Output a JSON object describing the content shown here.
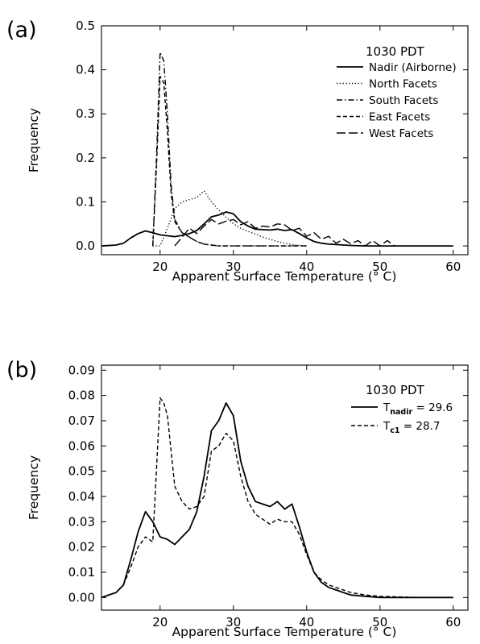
{
  "chart_data": [
    {
      "type": "line",
      "panel_label": "(a)",
      "legend_title": "1030 PDT",
      "xlabel": "Apparent Surface Temperature (° C)",
      "ylabel": "Frequency",
      "xlim": [
        12,
        62
      ],
      "ylim": [
        -0.02,
        0.5
      ],
      "xticks": [
        20,
        30,
        40,
        50,
        60
      ],
      "yticks": [
        0.0,
        0.1,
        0.2,
        0.3,
        0.4,
        0.5
      ],
      "ytick_labels": [
        "0.0",
        "0.1",
        "0.2",
        "0.3",
        "0.4",
        "0.5"
      ],
      "grid": false,
      "legend_position": "top-right",
      "series": [
        {
          "name": "Nadir (Airborne)",
          "style": "solid",
          "x": [
            12,
            14,
            15,
            16,
            17,
            18,
            19,
            20,
            21,
            22,
            23,
            24,
            25,
            26,
            27,
            28,
            29,
            30,
            31,
            32,
            33,
            34,
            35,
            36,
            37,
            38,
            39,
            40,
            41,
            42,
            43,
            44,
            45,
            46,
            48,
            50,
            55,
            60
          ],
          "y": [
            0.0,
            0.002,
            0.006,
            0.018,
            0.028,
            0.034,
            0.03,
            0.025,
            0.023,
            0.021,
            0.024,
            0.028,
            0.035,
            0.05,
            0.066,
            0.07,
            0.077,
            0.073,
            0.055,
            0.045,
            0.038,
            0.037,
            0.036,
            0.038,
            0.035,
            0.037,
            0.028,
            0.018,
            0.01,
            0.006,
            0.004,
            0.003,
            0.002,
            0.001,
            0.0,
            0.0,
            0.0,
            0.0
          ]
        },
        {
          "name": "North Facets",
          "style": "dotted",
          "x": [
            19,
            20,
            21,
            22,
            23,
            24,
            25,
            26,
            27,
            28,
            29,
            30,
            31,
            32,
            33,
            34,
            35,
            36,
            37,
            38,
            39,
            40
          ],
          "y": [
            0.0,
            0.0,
            0.04,
            0.085,
            0.1,
            0.105,
            0.11,
            0.125,
            0.1,
            0.082,
            0.065,
            0.05,
            0.04,
            0.033,
            0.027,
            0.02,
            0.015,
            0.01,
            0.006,
            0.003,
            0.001,
            0.0
          ]
        },
        {
          "name": "South Facets",
          "style": "dashdot",
          "x": [
            19,
            19.5,
            20,
            20.5,
            21,
            21.5,
            22,
            23,
            24,
            25,
            26,
            27,
            28,
            30,
            35,
            40
          ],
          "y": [
            0.0,
            0.2,
            0.44,
            0.42,
            0.3,
            0.14,
            0.06,
            0.03,
            0.02,
            0.01,
            0.004,
            0.002,
            0.0,
            0.0,
            0.0,
            0.0
          ]
        },
        {
          "name": "East Facets",
          "style": "dashed",
          "x": [
            19,
            19.5,
            20,
            20.5,
            21,
            21.5,
            22,
            23,
            24,
            25,
            26,
            27,
            28,
            30,
            35,
            40
          ],
          "y": [
            0.0,
            0.18,
            0.385,
            0.37,
            0.26,
            0.12,
            0.055,
            0.03,
            0.02,
            0.01,
            0.004,
            0.002,
            0.0,
            0.0,
            0.0,
            0.0
          ]
        },
        {
          "name": "West Facets",
          "style": "longdash",
          "x": [
            22,
            23,
            24,
            25,
            26,
            27,
            28,
            29,
            30,
            31,
            32,
            33,
            34,
            35,
            36,
            37,
            38,
            39,
            40,
            41,
            42,
            43,
            44,
            45,
            46,
            47,
            48,
            49,
            50,
            51,
            52
          ],
          "y": [
            0.0,
            0.02,
            0.04,
            0.028,
            0.045,
            0.06,
            0.05,
            0.056,
            0.06,
            0.048,
            0.055,
            0.04,
            0.045,
            0.043,
            0.05,
            0.048,
            0.035,
            0.04,
            0.022,
            0.03,
            0.015,
            0.022,
            0.006,
            0.015,
            0.005,
            0.012,
            0.0,
            0.012,
            0.0,
            0.012,
            0.0
          ]
        }
      ]
    },
    {
      "type": "line",
      "panel_label": "(b)",
      "legend_title": "1030 PDT",
      "xlabel": "Apparent Surface Temperature (° C)",
      "ylabel": "Frequency",
      "xlim": [
        12,
        62
      ],
      "ylim": [
        -0.005,
        0.092
      ],
      "xticks": [
        20,
        30,
        40,
        50,
        60
      ],
      "yticks": [
        0.0,
        0.01,
        0.02,
        0.03,
        0.04,
        0.05,
        0.06,
        0.07,
        0.08,
        0.09
      ],
      "ytick_labels": [
        "0.00",
        "0.01",
        "0.02",
        "0.03",
        "0.04",
        "0.05",
        "0.06",
        "0.07",
        "0.08",
        "0.09"
      ],
      "grid": false,
      "legend_position": "top-right",
      "series": [
        {
          "name_main": "T",
          "name_sub": "nadir",
          "name_value": " = 29.6",
          "style": "solid",
          "x": [
            12,
            14,
            15,
            16,
            17,
            18,
            19,
            20,
            21,
            22,
            23,
            24,
            25,
            26,
            27,
            28,
            29,
            30,
            31,
            32,
            33,
            34,
            35,
            36,
            37,
            38,
            39,
            40,
            41,
            42,
            43,
            44,
            45,
            46,
            48,
            50,
            55,
            60
          ],
          "y": [
            0.0,
            0.002,
            0.005,
            0.015,
            0.026,
            0.034,
            0.03,
            0.024,
            0.023,
            0.021,
            0.024,
            0.027,
            0.034,
            0.048,
            0.066,
            0.07,
            0.077,
            0.072,
            0.054,
            0.044,
            0.038,
            0.037,
            0.036,
            0.038,
            0.035,
            0.037,
            0.028,
            0.018,
            0.01,
            0.006,
            0.004,
            0.003,
            0.002,
            0.001,
            0.0005,
            0.0,
            0.0,
            0.0
          ]
        },
        {
          "name_main": "T",
          "name_sub": "c1",
          "name_value": " = 28.7",
          "style": "dashed",
          "x": [
            12,
            14,
            15,
            16,
            17,
            18,
            19,
            20,
            20.5,
            21,
            22,
            23,
            24,
            25,
            26,
            27,
            28,
            29,
            30,
            31,
            32,
            33,
            34,
            35,
            36,
            37,
            38,
            39,
            40,
            41,
            42,
            43,
            44,
            45,
            46,
            48,
            50,
            55,
            60
          ],
          "y": [
            0.0,
            0.002,
            0.005,
            0.012,
            0.02,
            0.024,
            0.022,
            0.079,
            0.077,
            0.072,
            0.044,
            0.038,
            0.035,
            0.036,
            0.04,
            0.058,
            0.06,
            0.065,
            0.062,
            0.048,
            0.038,
            0.033,
            0.031,
            0.029,
            0.031,
            0.03,
            0.03,
            0.025,
            0.017,
            0.01,
            0.007,
            0.005,
            0.004,
            0.003,
            0.002,
            0.001,
            0.0005,
            0.0,
            0.0
          ]
        }
      ]
    }
  ]
}
